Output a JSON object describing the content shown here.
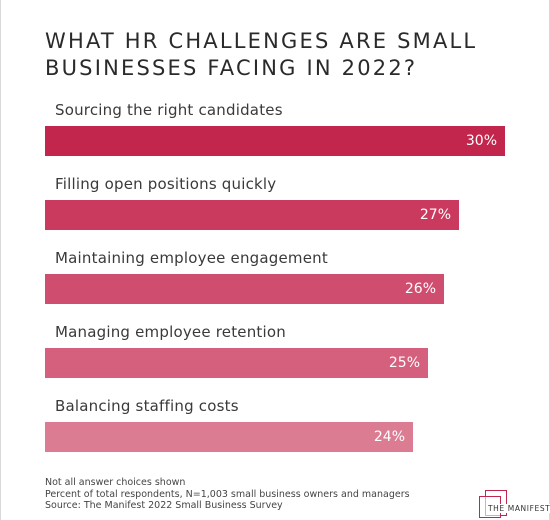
{
  "chart_data": {
    "type": "bar",
    "orientation": "horizontal",
    "title": "WHAT HR CHALLENGES ARE SMALL BUSINESSES FACING IN 2022?",
    "categories": [
      "Sourcing the right candidates",
      "Filling open positions quickly",
      "Maintaining employee engagement",
      "Managing employee retention",
      "Balancing staffing costs"
    ],
    "values": [
      30,
      27,
      26,
      25,
      24
    ],
    "value_labels": [
      "30%",
      "27%",
      "26%",
      "25%",
      "24%"
    ],
    "xlim": [
      0,
      30
    ],
    "grid": false,
    "legend": "none",
    "bar_colors": [
      "#c3264d",
      "#ca3a5f",
      "#cf4d6e",
      "#d4607d",
      "#db7c93"
    ]
  },
  "notes": [
    "Not all answer choices shown",
    "Percent of total respondents, N=1,003 small business owners and managers",
    "Source: The Manifest 2022 Small Business Survey"
  ],
  "logo": {
    "text": "THE MANIFEST",
    "color": "#c0264e"
  }
}
